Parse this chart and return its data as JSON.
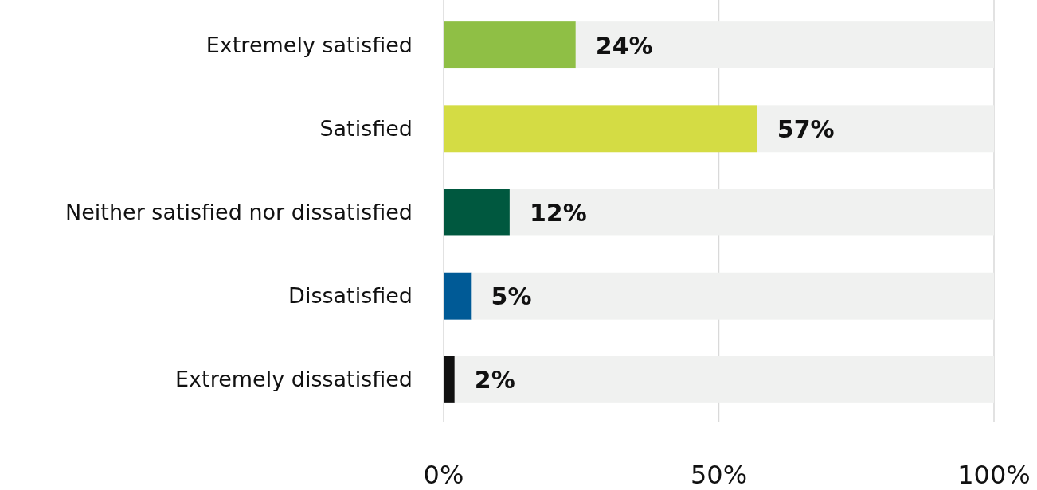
{
  "chart_data": {
    "type": "bar",
    "orientation": "horizontal",
    "stacked": true,
    "categories": [
      "Extremely satisfied",
      "Satisfied",
      "Neither satisfied nor dissatisfied",
      "Dissatisfied",
      "Extremely dissatisfied"
    ],
    "series": [
      {
        "colors": [
          "#8fbf45",
          "#d4dc44",
          "#00583f",
          "#005a96",
          "#111111"
        ],
        "values": [
          24,
          57,
          12,
          5,
          2
        ],
        "value_labels": [
          "24%",
          "57%",
          "12%",
          "5%",
          "2%"
        ]
      },
      {
        "color": "#f0f1f0",
        "values": [
          76,
          43,
          88,
          95,
          98
        ]
      }
    ],
    "xlim": [
      0,
      100
    ],
    "xticks": [
      {
        "value": 0,
        "label": "0%"
      },
      {
        "value": 50,
        "label": "50%"
      },
      {
        "value": 100,
        "label": "100%"
      }
    ],
    "grid": "x"
  }
}
